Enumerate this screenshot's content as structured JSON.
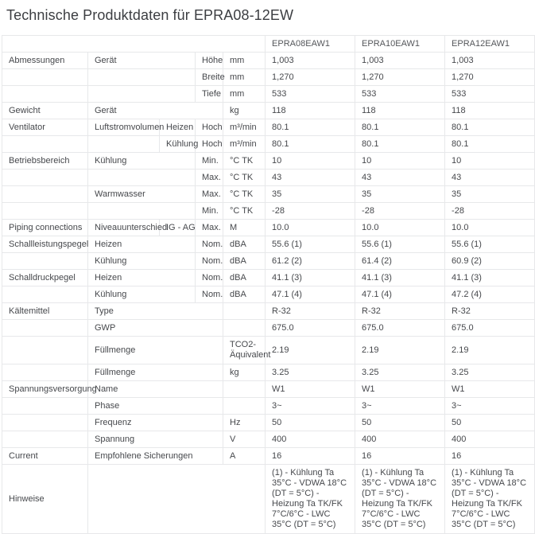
{
  "title": "Technische Produktdaten für EPRA08-12EW",
  "colors": {
    "text": "#46484c",
    "title": "#3c3e42",
    "border": "#e7e8ea",
    "header_text": "#55575b",
    "background": "#ffffff"
  },
  "table": {
    "products": [
      "EPRA08EAW1",
      "EPRA10EAW1",
      "EPRA12EAW1"
    ],
    "rows": [
      {
        "cells": [
          {
            "t": "Abmessungen"
          },
          {
            "t": "Gerät",
            "s": 2
          },
          {
            "t": "Höhe"
          },
          {
            "t": "mm"
          },
          {
            "t": "1,003"
          },
          {
            "t": "1,003"
          },
          {
            "t": "1,003"
          }
        ]
      },
      {
        "cells": [
          {
            "t": ""
          },
          {
            "t": "",
            "s": 2
          },
          {
            "t": "Breite"
          },
          {
            "t": "mm"
          },
          {
            "t": "1,270"
          },
          {
            "t": "1,270"
          },
          {
            "t": "1,270"
          }
        ]
      },
      {
        "cells": [
          {
            "t": ""
          },
          {
            "t": "",
            "s": 2
          },
          {
            "t": "Tiefe"
          },
          {
            "t": "mm"
          },
          {
            "t": "533"
          },
          {
            "t": "533"
          },
          {
            "t": "533"
          }
        ]
      },
      {
        "cells": [
          {
            "t": "Gewicht"
          },
          {
            "t": "Gerät",
            "s": 3
          },
          {
            "t": "kg"
          },
          {
            "t": "118"
          },
          {
            "t": "118"
          },
          {
            "t": "118"
          }
        ]
      },
      {
        "cells": [
          {
            "t": "Ventilator"
          },
          {
            "t": "Luftstromvolumen"
          },
          {
            "t": "Heizen"
          },
          {
            "t": "Hoch"
          },
          {
            "t": "m³/min"
          },
          {
            "t": "80.1"
          },
          {
            "t": "80.1"
          },
          {
            "t": "80.1"
          }
        ]
      },
      {
        "cells": [
          {
            "t": ""
          },
          {
            "t": ""
          },
          {
            "t": "Kühlung"
          },
          {
            "t": "Hoch"
          },
          {
            "t": "m³/min"
          },
          {
            "t": "80.1"
          },
          {
            "t": "80.1"
          },
          {
            "t": "80.1"
          }
        ]
      },
      {
        "cells": [
          {
            "t": "Betriebsbereich"
          },
          {
            "t": "Kühlung",
            "s": 2
          },
          {
            "t": "Min."
          },
          {
            "t": "°C TK"
          },
          {
            "t": "10"
          },
          {
            "t": "10"
          },
          {
            "t": "10"
          }
        ]
      },
      {
        "cells": [
          {
            "t": ""
          },
          {
            "t": "",
            "s": 2
          },
          {
            "t": "Max."
          },
          {
            "t": "°C TK"
          },
          {
            "t": "43"
          },
          {
            "t": "43"
          },
          {
            "t": "43"
          }
        ]
      },
      {
        "cells": [
          {
            "t": ""
          },
          {
            "t": "Warmwasser",
            "s": 2
          },
          {
            "t": "Max."
          },
          {
            "t": "°C TK"
          },
          {
            "t": "35"
          },
          {
            "t": "35"
          },
          {
            "t": "35"
          }
        ]
      },
      {
        "cells": [
          {
            "t": ""
          },
          {
            "t": "",
            "s": 2
          },
          {
            "t": "Min."
          },
          {
            "t": "°C TK"
          },
          {
            "t": "-28"
          },
          {
            "t": "-28"
          },
          {
            "t": "-28"
          }
        ]
      },
      {
        "cells": [
          {
            "t": "Piping connections"
          },
          {
            "t": "Niveauunterschied"
          },
          {
            "t": "IG - AG"
          },
          {
            "t": "Max."
          },
          {
            "t": "M"
          },
          {
            "t": "10.0"
          },
          {
            "t": "10.0"
          },
          {
            "t": "10.0"
          }
        ]
      },
      {
        "cells": [
          {
            "t": "Schallleistungspegel"
          },
          {
            "t": "Heizen",
            "s": 2
          },
          {
            "t": "Nom."
          },
          {
            "t": "dBA"
          },
          {
            "t": "55.6 (1)"
          },
          {
            "t": "55.6 (1)"
          },
          {
            "t": "55.6 (1)"
          }
        ]
      },
      {
        "cells": [
          {
            "t": ""
          },
          {
            "t": "Kühlung",
            "s": 2
          },
          {
            "t": "Nom."
          },
          {
            "t": "dBA"
          },
          {
            "t": "61.2 (2)"
          },
          {
            "t": "61.4 (2)"
          },
          {
            "t": "60.9 (2)"
          }
        ]
      },
      {
        "cells": [
          {
            "t": "Schalldruckpegel"
          },
          {
            "t": "Heizen",
            "s": 2
          },
          {
            "t": "Nom."
          },
          {
            "t": "dBA"
          },
          {
            "t": "41.1 (3)"
          },
          {
            "t": "41.1 (3)"
          },
          {
            "t": "41.1 (3)"
          }
        ]
      },
      {
        "cells": [
          {
            "t": ""
          },
          {
            "t": "Kühlung",
            "s": 2
          },
          {
            "t": "Nom."
          },
          {
            "t": "dBA"
          },
          {
            "t": "47.1 (4)"
          },
          {
            "t": "47.1 (4)"
          },
          {
            "t": "47.2 (4)"
          }
        ]
      },
      {
        "cells": [
          {
            "t": "Kältemittel"
          },
          {
            "t": "Type",
            "s": 3
          },
          {
            "t": ""
          },
          {
            "t": "R-32"
          },
          {
            "t": "R-32"
          },
          {
            "t": "R-32"
          }
        ]
      },
      {
        "cells": [
          {
            "t": ""
          },
          {
            "t": "GWP",
            "s": 3
          },
          {
            "t": ""
          },
          {
            "t": "675.0"
          },
          {
            "t": "675.0"
          },
          {
            "t": "675.0"
          }
        ]
      },
      {
        "cells": [
          {
            "t": ""
          },
          {
            "t": "Füllmenge",
            "s": 3
          },
          {
            "t": "TCO2-\nÄquivalent",
            "wrap": true
          },
          {
            "t": "2.19"
          },
          {
            "t": "2.19"
          },
          {
            "t": "2.19"
          }
        ]
      },
      {
        "cells": [
          {
            "t": ""
          },
          {
            "t": "Füllmenge",
            "s": 3
          },
          {
            "t": "kg"
          },
          {
            "t": "3.25"
          },
          {
            "t": "3.25"
          },
          {
            "t": "3.25"
          }
        ]
      },
      {
        "cells": [
          {
            "t": "Spannungsversorgung"
          },
          {
            "t": "Name",
            "s": 3
          },
          {
            "t": ""
          },
          {
            "t": "W1"
          },
          {
            "t": "W1"
          },
          {
            "t": "W1"
          }
        ]
      },
      {
        "cells": [
          {
            "t": ""
          },
          {
            "t": "Phase",
            "s": 3
          },
          {
            "t": ""
          },
          {
            "t": "3~"
          },
          {
            "t": "3~"
          },
          {
            "t": "3~"
          }
        ]
      },
      {
        "cells": [
          {
            "t": ""
          },
          {
            "t": "Frequenz",
            "s": 3
          },
          {
            "t": "Hz"
          },
          {
            "t": "50"
          },
          {
            "t": "50"
          },
          {
            "t": "50"
          }
        ]
      },
      {
        "cells": [
          {
            "t": ""
          },
          {
            "t": "Spannung",
            "s": 3
          },
          {
            "t": "V"
          },
          {
            "t": "400"
          },
          {
            "t": "400"
          },
          {
            "t": "400"
          }
        ]
      },
      {
        "cells": [
          {
            "t": "Current"
          },
          {
            "t": "Empfohlene Sicherungen",
            "s": 3
          },
          {
            "t": "A"
          },
          {
            "t": "16"
          },
          {
            "t": "16"
          },
          {
            "t": "16"
          }
        ]
      },
      {
        "cells": [
          {
            "t": "Hinweise"
          },
          {
            "t": "",
            "s": 4
          },
          {
            "t": "(1) - Kühlung Ta 35°C - VDWA 18°C (DT = 5°C) - Heizung Ta TK/FK 7°C/6°C - LWC 35°C (DT = 5°C)",
            "wrap": true
          },
          {
            "t": "(1) - Kühlung Ta 35°C - VDWA 18°C (DT = 5°C) - Heizung Ta TK/FK 7°C/6°C - LWC 35°C (DT = 5°C)",
            "wrap": true
          },
          {
            "t": "(1) - Kühlung Ta 35°C - VDWA 18°C (DT = 5°C) - Heizung Ta TK/FK 7°C/6°C - LWC 35°C (DT = 5°C)",
            "wrap": true
          }
        ]
      }
    ]
  }
}
